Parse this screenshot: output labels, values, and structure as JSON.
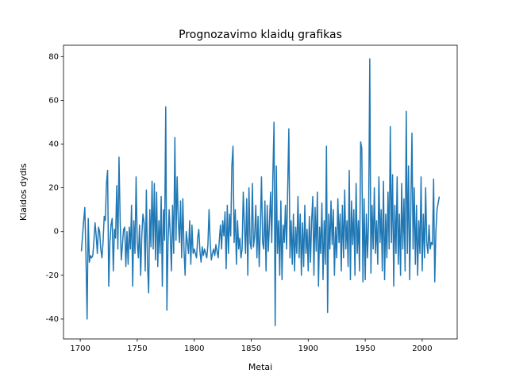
{
  "chart_data": {
    "type": "line",
    "title": "Prognozavimo klaidų grafikas",
    "xlabel": "Metai",
    "ylabel": "Klaidos dydis",
    "color": "#1f77b4",
    "xlim": [
      1685.3,
      2030.7
    ],
    "xticks": [
      1700,
      1750,
      1800,
      1850,
      1900,
      1950,
      2000
    ],
    "ylim": [
      -49.1,
      85.2
    ],
    "yticks": [
      -40,
      -20,
      0,
      20,
      40,
      60,
      80
    ],
    "x": [
      1701,
      1702,
      1703,
      1704,
      1705,
      1706,
      1707,
      1708,
      1709,
      1710,
      1711,
      1712,
      1713,
      1714,
      1715,
      1716,
      1717,
      1718,
      1719,
      1720,
      1721,
      1722,
      1723,
      1724,
      1725,
      1726,
      1727,
      1728,
      1729,
      1730,
      1731,
      1732,
      1733,
      1734,
      1735,
      1736,
      1737,
      1738,
      1739,
      1740,
      1741,
      1742,
      1743,
      1744,
      1745,
      1746,
      1747,
      1748,
      1749,
      1750,
      1751,
      1752,
      1753,
      1754,
      1755,
      1756,
      1757,
      1758,
      1759,
      1760,
      1761,
      1762,
      1763,
      1764,
      1765,
      1766,
      1767,
      1768,
      1769,
      1770,
      1771,
      1772,
      1773,
      1774,
      1775,
      1776,
      1777,
      1778,
      1779,
      1780,
      1781,
      1782,
      1783,
      1784,
      1785,
      1786,
      1787,
      1788,
      1789,
      1790,
      1791,
      1792,
      1793,
      1794,
      1795,
      1796,
      1797,
      1798,
      1799,
      1800,
      1801,
      1802,
      1803,
      1804,
      1805,
      1806,
      1807,
      1808,
      1809,
      1810,
      1811,
      1812,
      1813,
      1814,
      1815,
      1816,
      1817,
      1818,
      1819,
      1820,
      1821,
      1822,
      1823,
      1824,
      1825,
      1826,
      1827,
      1828,
      1829,
      1830,
      1831,
      1832,
      1833,
      1834,
      1835,
      1836,
      1837,
      1838,
      1839,
      1840,
      1841,
      1842,
      1843,
      1844,
      1845,
      1846,
      1847,
      1848,
      1849,
      1850,
      1851,
      1852,
      1853,
      1854,
      1855,
      1856,
      1857,
      1858,
      1859,
      1860,
      1861,
      1862,
      1863,
      1864,
      1865,
      1866,
      1867,
      1868,
      1869,
      1870,
      1871,
      1872,
      1873,
      1874,
      1875,
      1876,
      1877,
      1878,
      1879,
      1880,
      1881,
      1882,
      1883,
      1884,
      1885,
      1886,
      1887,
      1888,
      1889,
      1890,
      1891,
      1892,
      1893,
      1894,
      1895,
      1896,
      1897,
      1898,
      1899,
      1900,
      1901,
      1902,
      1903,
      1904,
      1905,
      1906,
      1907,
      1908,
      1909,
      1910,
      1911,
      1912,
      1913,
      1914,
      1915,
      1916,
      1917,
      1918,
      1919,
      1920,
      1921,
      1922,
      1923,
      1924,
      1925,
      1926,
      1927,
      1928,
      1929,
      1930,
      1931,
      1932,
      1933,
      1934,
      1935,
      1936,
      1937,
      1938,
      1939,
      1940,
      1941,
      1942,
      1943,
      1944,
      1945,
      1946,
      1947,
      1948,
      1949,
      1950,
      1951,
      1952,
      1953,
      1954,
      1955,
      1956,
      1957,
      1958,
      1959,
      1960,
      1961,
      1962,
      1963,
      1964,
      1965,
      1966,
      1967,
      1968,
      1969,
      1970,
      1971,
      1972,
      1973,
      1974,
      1975,
      1976,
      1977,
      1978,
      1979,
      1980,
      1981,
      1982,
      1983,
      1984,
      1985,
      1986,
      1987,
      1988,
      1989,
      1990,
      1991,
      1992,
      1993,
      1994,
      1995,
      1996,
      1997,
      1998,
      1999,
      2000,
      2001,
      2002,
      2003,
      2004,
      2005,
      2006,
      2007,
      2008,
      2009,
      2010,
      2011,
      2012,
      2013,
      2014,
      2015
    ],
    "values": [
      -9,
      -2,
      5,
      11,
      -11,
      -40,
      6,
      -14,
      -11,
      -12,
      -11,
      -4,
      4,
      -2,
      -10,
      2,
      0,
      -8,
      -12,
      -5,
      7,
      5,
      22,
      28,
      -25,
      -5,
      3,
      6,
      -18,
      1,
      -3,
      21,
      -8,
      34,
      5,
      -13,
      -6,
      1,
      2,
      -16,
      0,
      -15,
      2,
      -8,
      12,
      -25,
      5,
      -10,
      25,
      -5,
      -12,
      3,
      -20,
      -2,
      8,
      4,
      -18,
      19,
      -15,
      -28,
      10,
      -7,
      23,
      -8,
      22,
      -13,
      18,
      -16,
      5,
      -10,
      16,
      -25,
      10,
      -4,
      57,
      -36,
      -5,
      10,
      -2,
      -18,
      12,
      -10,
      43,
      -4,
      25,
      5,
      -5,
      14,
      -12,
      15,
      -8,
      -20,
      0,
      -5,
      -10,
      5,
      -15,
      3,
      -10,
      -8,
      -10,
      -12,
      -3,
      1,
      -9,
      -14,
      -7,
      -11,
      -8,
      -10,
      -12,
      -6,
      10,
      -5,
      -13,
      -10,
      -8,
      -11,
      -6,
      -9,
      -12,
      -4,
      3,
      -8,
      5,
      -2,
      9,
      -17,
      12,
      -10,
      8,
      -2,
      30,
      39,
      -5,
      10,
      -15,
      5,
      -8,
      -3,
      -12,
      -8,
      18,
      3,
      -10,
      15,
      -20,
      20,
      -5,
      -8,
      22,
      -7,
      -2,
      12,
      -12,
      7,
      -16,
      2,
      25,
      -5,
      -8,
      14,
      -18,
      12,
      -9,
      4,
      18,
      -5,
      26,
      50,
      -43,
      30,
      -10,
      5,
      -20,
      14,
      -22,
      3,
      -5,
      12,
      -8,
      20,
      47,
      -12,
      5,
      -15,
      8,
      -18,
      2,
      -10,
      16,
      -12,
      8,
      -20,
      4,
      -16,
      12,
      -10,
      1,
      -18,
      7,
      -14,
      5,
      16,
      -20,
      11,
      -9,
      18,
      -25,
      2,
      -10,
      13,
      -22,
      5,
      -15,
      39,
      -37,
      8,
      -8,
      14,
      -6,
      10,
      -20,
      2,
      -12,
      15,
      -5,
      8,
      -18,
      12,
      -12,
      19,
      -8,
      5,
      -16,
      28,
      -22,
      14,
      -6,
      10,
      -20,
      22,
      -10,
      5,
      -18,
      41,
      38,
      -23,
      15,
      -22,
      8,
      -12,
      5,
      79,
      -19,
      12,
      -8,
      20,
      -10,
      5,
      -15,
      25,
      -5,
      10,
      -18,
      23,
      -22,
      8,
      -12,
      18,
      -8,
      48,
      -5,
      26,
      -25,
      12,
      -10,
      25,
      -15,
      8,
      -20,
      22,
      -8,
      15,
      -18,
      55,
      -10,
      30,
      -22,
      10,
      45,
      -8,
      20,
      -15,
      12,
      -20,
      5,
      -10,
      25,
      -18,
      8,
      -12,
      20,
      -5,
      -10,
      3,
      -8,
      -5,
      -6,
      24,
      -23,
      0,
      10,
      13,
      16
    ]
  }
}
